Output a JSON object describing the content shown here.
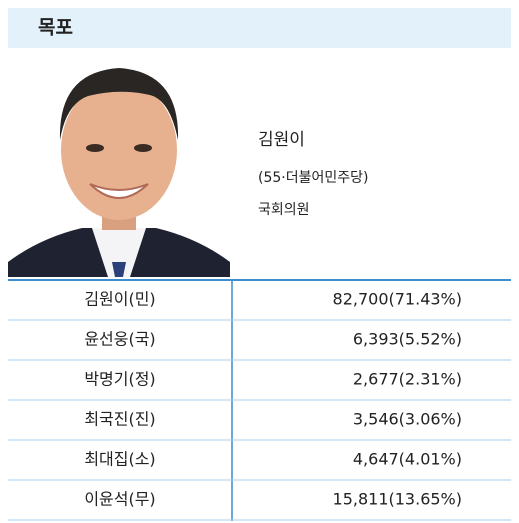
{
  "header": {
    "title": "목포"
  },
  "candidate": {
    "name": "김원이",
    "detail": "(55·더불어민주당)",
    "position": "국회의원"
  },
  "table": {
    "rows": [
      [
        "김원이(민)",
        "82,700(71.43%)"
      ],
      [
        "윤선웅(국)",
        "6,393(5.52%)"
      ],
      [
        "박명기(정)",
        "2,677(2.31%)"
      ],
      [
        "최국진(진)",
        "3,546(3.06%)"
      ],
      [
        "최대집(소)",
        "4,647(4.01%)"
      ],
      [
        "이윤석(무)",
        "15,811(13.65%)"
      ]
    ]
  }
}
